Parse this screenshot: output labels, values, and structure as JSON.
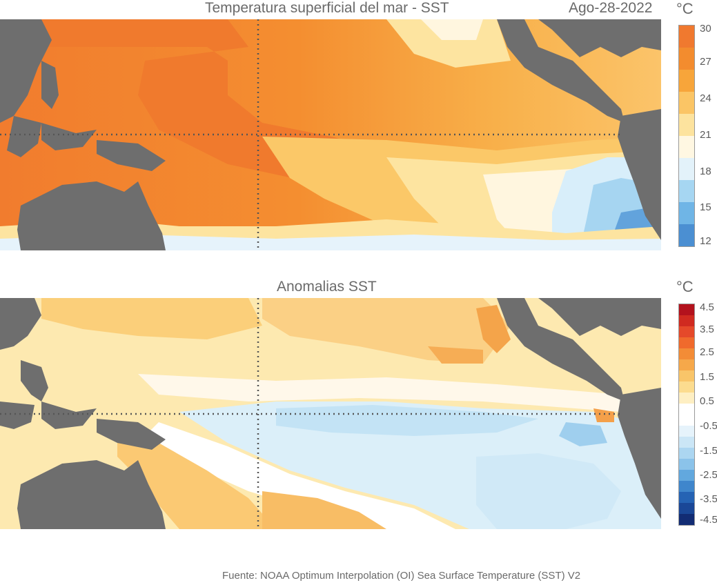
{
  "sst": {
    "title": "Temperatura superficial del mar - SST",
    "date": "Ago-28-2022",
    "unit": "°C",
    "colorbar": {
      "ticks": [
        "30",
        "27",
        "24",
        "21",
        "18",
        "15",
        "12"
      ],
      "colors": [
        "#f0792f",
        "#f38c2e",
        "#f7a53a",
        "#fbc565",
        "#fde39e",
        "#fff7e2",
        "#e3f2fa",
        "#a6d6f2",
        "#6fb5e6",
        "#4b8fd2"
      ]
    }
  },
  "anomaly": {
    "title": "Anomalias SST",
    "unit": "°C",
    "colorbar": {
      "ticks": [
        "4.5",
        "3.5",
        "2.5",
        "1.5",
        "0.5",
        "-0.5",
        "-1.5",
        "-2.5",
        "-3.5",
        "-4.5"
      ],
      "colors": [
        "#b3121d",
        "#d02a20",
        "#e5492a",
        "#f06a2c",
        "#f38c36",
        "#f6a84a",
        "#f9c569",
        "#fcdc8f",
        "#feefc3",
        "#ffffff",
        "#ffffff",
        "#e6f3fb",
        "#cbe6f6",
        "#acd6f1",
        "#8bc3ea",
        "#62a8de",
        "#3f86cc",
        "#2563b4",
        "#1a4797",
        "#122c74"
      ]
    }
  },
  "footer": {
    "source": "Fuente: NOAA Optimum Interpolation (OI) Sea Surface Temperature (SST) V2"
  },
  "colors": {
    "land": "#6e6e6e",
    "gridline": "#555555"
  }
}
